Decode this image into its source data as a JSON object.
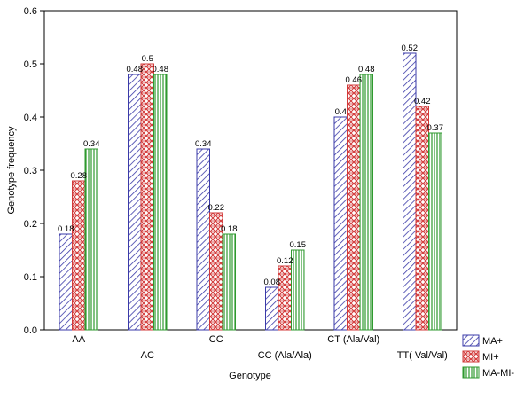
{
  "chart_data": {
    "type": "bar",
    "xlabel": "Genotype",
    "ylabel": "Genotype frequency",
    "ylim": [
      0,
      0.6
    ],
    "yticks": [
      "0.0",
      "0.1",
      "0.2",
      "0.3",
      "0.4",
      "0.5",
      "0.6"
    ],
    "categories": [
      "AA",
      "AC",
      "CC",
      "CC (Ala/Ala)",
      "CT (Ala/Val)",
      "TT( Val/Val)"
    ],
    "series": [
      {
        "name": "MA+",
        "values": [
          0.18,
          0.48,
          0.34,
          0.08,
          0.4,
          0.52
        ],
        "labels": [
          "0.18",
          "0.48",
          "0.34",
          "0.08",
          "0.4",
          "0.52"
        ],
        "color": "#3a3aa8",
        "pattern": "diagonal"
      },
      {
        "name": "MI+",
        "values": [
          0.28,
          0.5,
          0.22,
          0.12,
          0.46,
          0.42
        ],
        "labels": [
          "0.28",
          "0.5",
          "0.22",
          "0.12",
          "0.46",
          "0.42"
        ],
        "color": "#d23a3a",
        "pattern": "crosshatch"
      },
      {
        "name": "MA-MI-",
        "values": [
          0.34,
          0.48,
          0.18,
          0.15,
          0.48,
          0.37
        ],
        "labels": [
          "0.34",
          "0.48",
          "0.18",
          "0.15",
          "0.48",
          "0.37"
        ],
        "color": "#2f9a2f",
        "pattern": "vertical"
      }
    ],
    "legend": "bottom-right",
    "grid": false
  }
}
